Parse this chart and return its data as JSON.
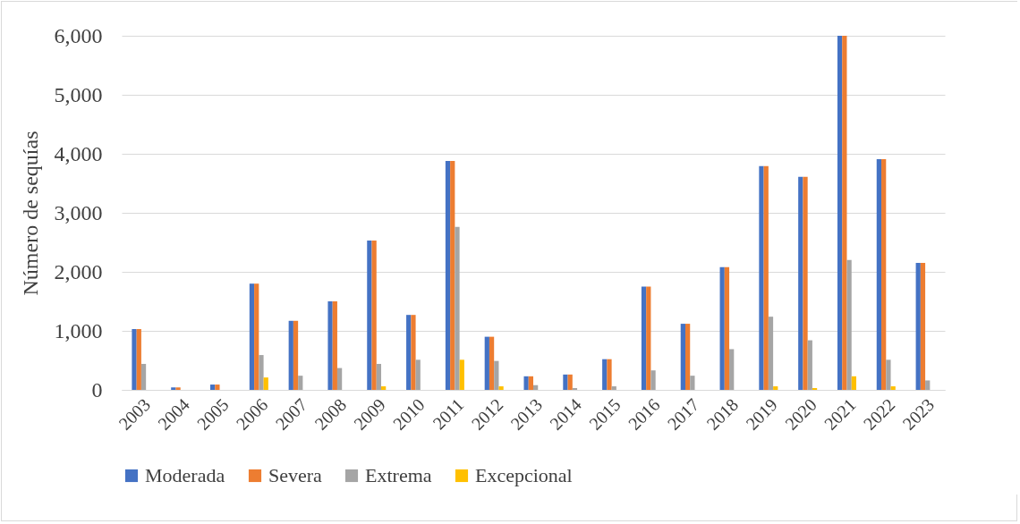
{
  "chart_data": {
    "type": "bar",
    "ylabel": "Número de sequías",
    "categories": [
      "2003",
      "2004",
      "2005",
      "2006",
      "2007",
      "2008",
      "2009",
      "2010",
      "2011",
      "2012",
      "2013",
      "2014",
      "2015",
      "2016",
      "2017",
      "2018",
      "2019",
      "2020",
      "2021",
      "2022",
      "2023"
    ],
    "series": [
      {
        "name": "Moderada",
        "color": "#4472c4",
        "values": [
          1030,
          40,
          90,
          1800,
          1170,
          1500,
          2530,
          1270,
          3880,
          900,
          230,
          260,
          520,
          1750,
          1120,
          2080,
          3790,
          3610,
          6000,
          3910,
          2150
        ]
      },
      {
        "name": "Severa",
        "color": "#ed7d31",
        "values": [
          1030,
          40,
          90,
          1800,
          1170,
          1500,
          2530,
          1270,
          3880,
          900,
          230,
          260,
          520,
          1750,
          1120,
          2080,
          3790,
          3610,
          6000,
          3910,
          2150
        ]
      },
      {
        "name": "Extrema",
        "color": "#a5a5a5",
        "values": [
          440,
          0,
          0,
          590,
          240,
          370,
          440,
          510,
          2760,
          490,
          80,
          30,
          60,
          330,
          240,
          690,
          1240,
          840,
          2200,
          510,
          160
        ]
      },
      {
        "name": "Excepcional",
        "color": "#ffc000",
        "values": [
          0,
          0,
          0,
          210,
          0,
          0,
          60,
          0,
          510,
          60,
          0,
          0,
          0,
          0,
          0,
          0,
          60,
          30,
          230,
          60,
          0
        ]
      }
    ],
    "ylim": [
      0,
      6000
    ],
    "yticks": [
      {
        "value": 0,
        "label": "0"
      },
      {
        "value": 1000,
        "label": "1,000"
      },
      {
        "value": 2000,
        "label": "2,000"
      },
      {
        "value": 3000,
        "label": "3,000"
      },
      {
        "value": 4000,
        "label": "4,000"
      },
      {
        "value": 5000,
        "label": "5,000"
      },
      {
        "value": 6000,
        "label": "6,000"
      }
    ],
    "grid": "y",
    "legend": "bottom"
  }
}
